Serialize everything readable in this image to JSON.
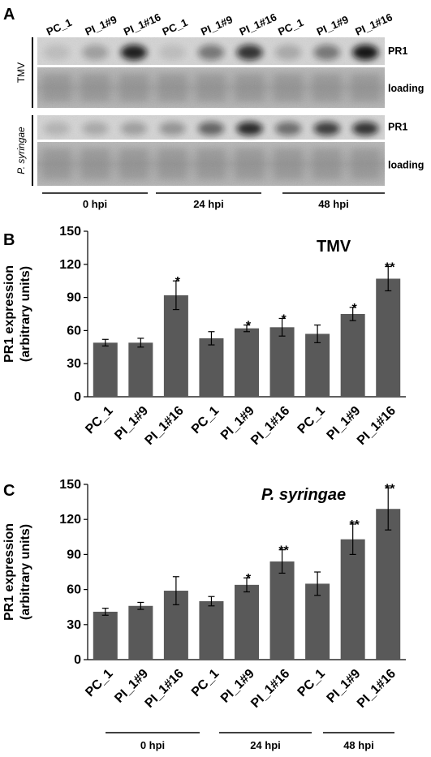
{
  "panel_a": {
    "letter": "A",
    "lanes": [
      "PC_1",
      "PI_1#9",
      "PI_1#16",
      "PC_1",
      "PI_1#9",
      "PI_1#16",
      "PC_1",
      "PI_1#9",
      "PI_1#16"
    ],
    "blocks": [
      {
        "organism": "TMV",
        "pr1_label": "PR1",
        "loading_label": "loading",
        "pr1_band_intensity": [
          0.1,
          0.25,
          0.9,
          0.1,
          0.45,
          0.8,
          0.2,
          0.45,
          0.95
        ]
      },
      {
        "organism": "P. syringae",
        "pr1_label": "PR1",
        "loading_label": "loading",
        "pr1_band_intensity": [
          0.15,
          0.2,
          0.25,
          0.3,
          0.55,
          0.85,
          0.5,
          0.75,
          0.8
        ]
      }
    ],
    "groups": [
      "0 hpi",
      "24 hpi",
      "48 hpi"
    ]
  },
  "chart_data": [
    {
      "panel": "B",
      "type": "bar",
      "title": "TMV",
      "ylabel": "PR1 expression\n(arbitrary units)",
      "ylim": [
        0,
        150
      ],
      "yticks": [
        0,
        30,
        60,
        90,
        120,
        150
      ],
      "categories": [
        "PC_1",
        "PI_1#9",
        "PI_1#16",
        "PC_1",
        "PI_1#9",
        "PI_1#16",
        "PC_1",
        "PI_1#9",
        "PI_1#16"
      ],
      "values": [
        49,
        49,
        92,
        53,
        62,
        63,
        57,
        75,
        107
      ],
      "errors": [
        3,
        4,
        13,
        6,
        3,
        8,
        8,
        6,
        11
      ],
      "significance": [
        "",
        "",
        "*",
        "",
        "*",
        "*",
        "",
        "*",
        "**"
      ],
      "bar_color": "#595959",
      "groups": []
    },
    {
      "panel": "C",
      "type": "bar",
      "title": "P. syringae",
      "ylabel": "PR1 expression\n(arbitrary units)",
      "ylim": [
        0,
        150
      ],
      "yticks": [
        0,
        30,
        60,
        90,
        120,
        150
      ],
      "categories": [
        "PC_1",
        "PI_1#9",
        "PI_1#16",
        "PC_1",
        "PI_1#9",
        "PI_1#16",
        "PC_1",
        "PI_1#9",
        "PI_1#16"
      ],
      "values": [
        41,
        46,
        59,
        50,
        64,
        84,
        65,
        103,
        129
      ],
      "errors": [
        3,
        3,
        12,
        4,
        6,
        10,
        10,
        13,
        18
      ],
      "significance": [
        "",
        "",
        "",
        "",
        "*",
        "**",
        "",
        "**",
        "**"
      ],
      "bar_color": "#595959",
      "groups": [
        "0 hpi",
        "24 hpi",
        "48 hpi"
      ]
    }
  ]
}
